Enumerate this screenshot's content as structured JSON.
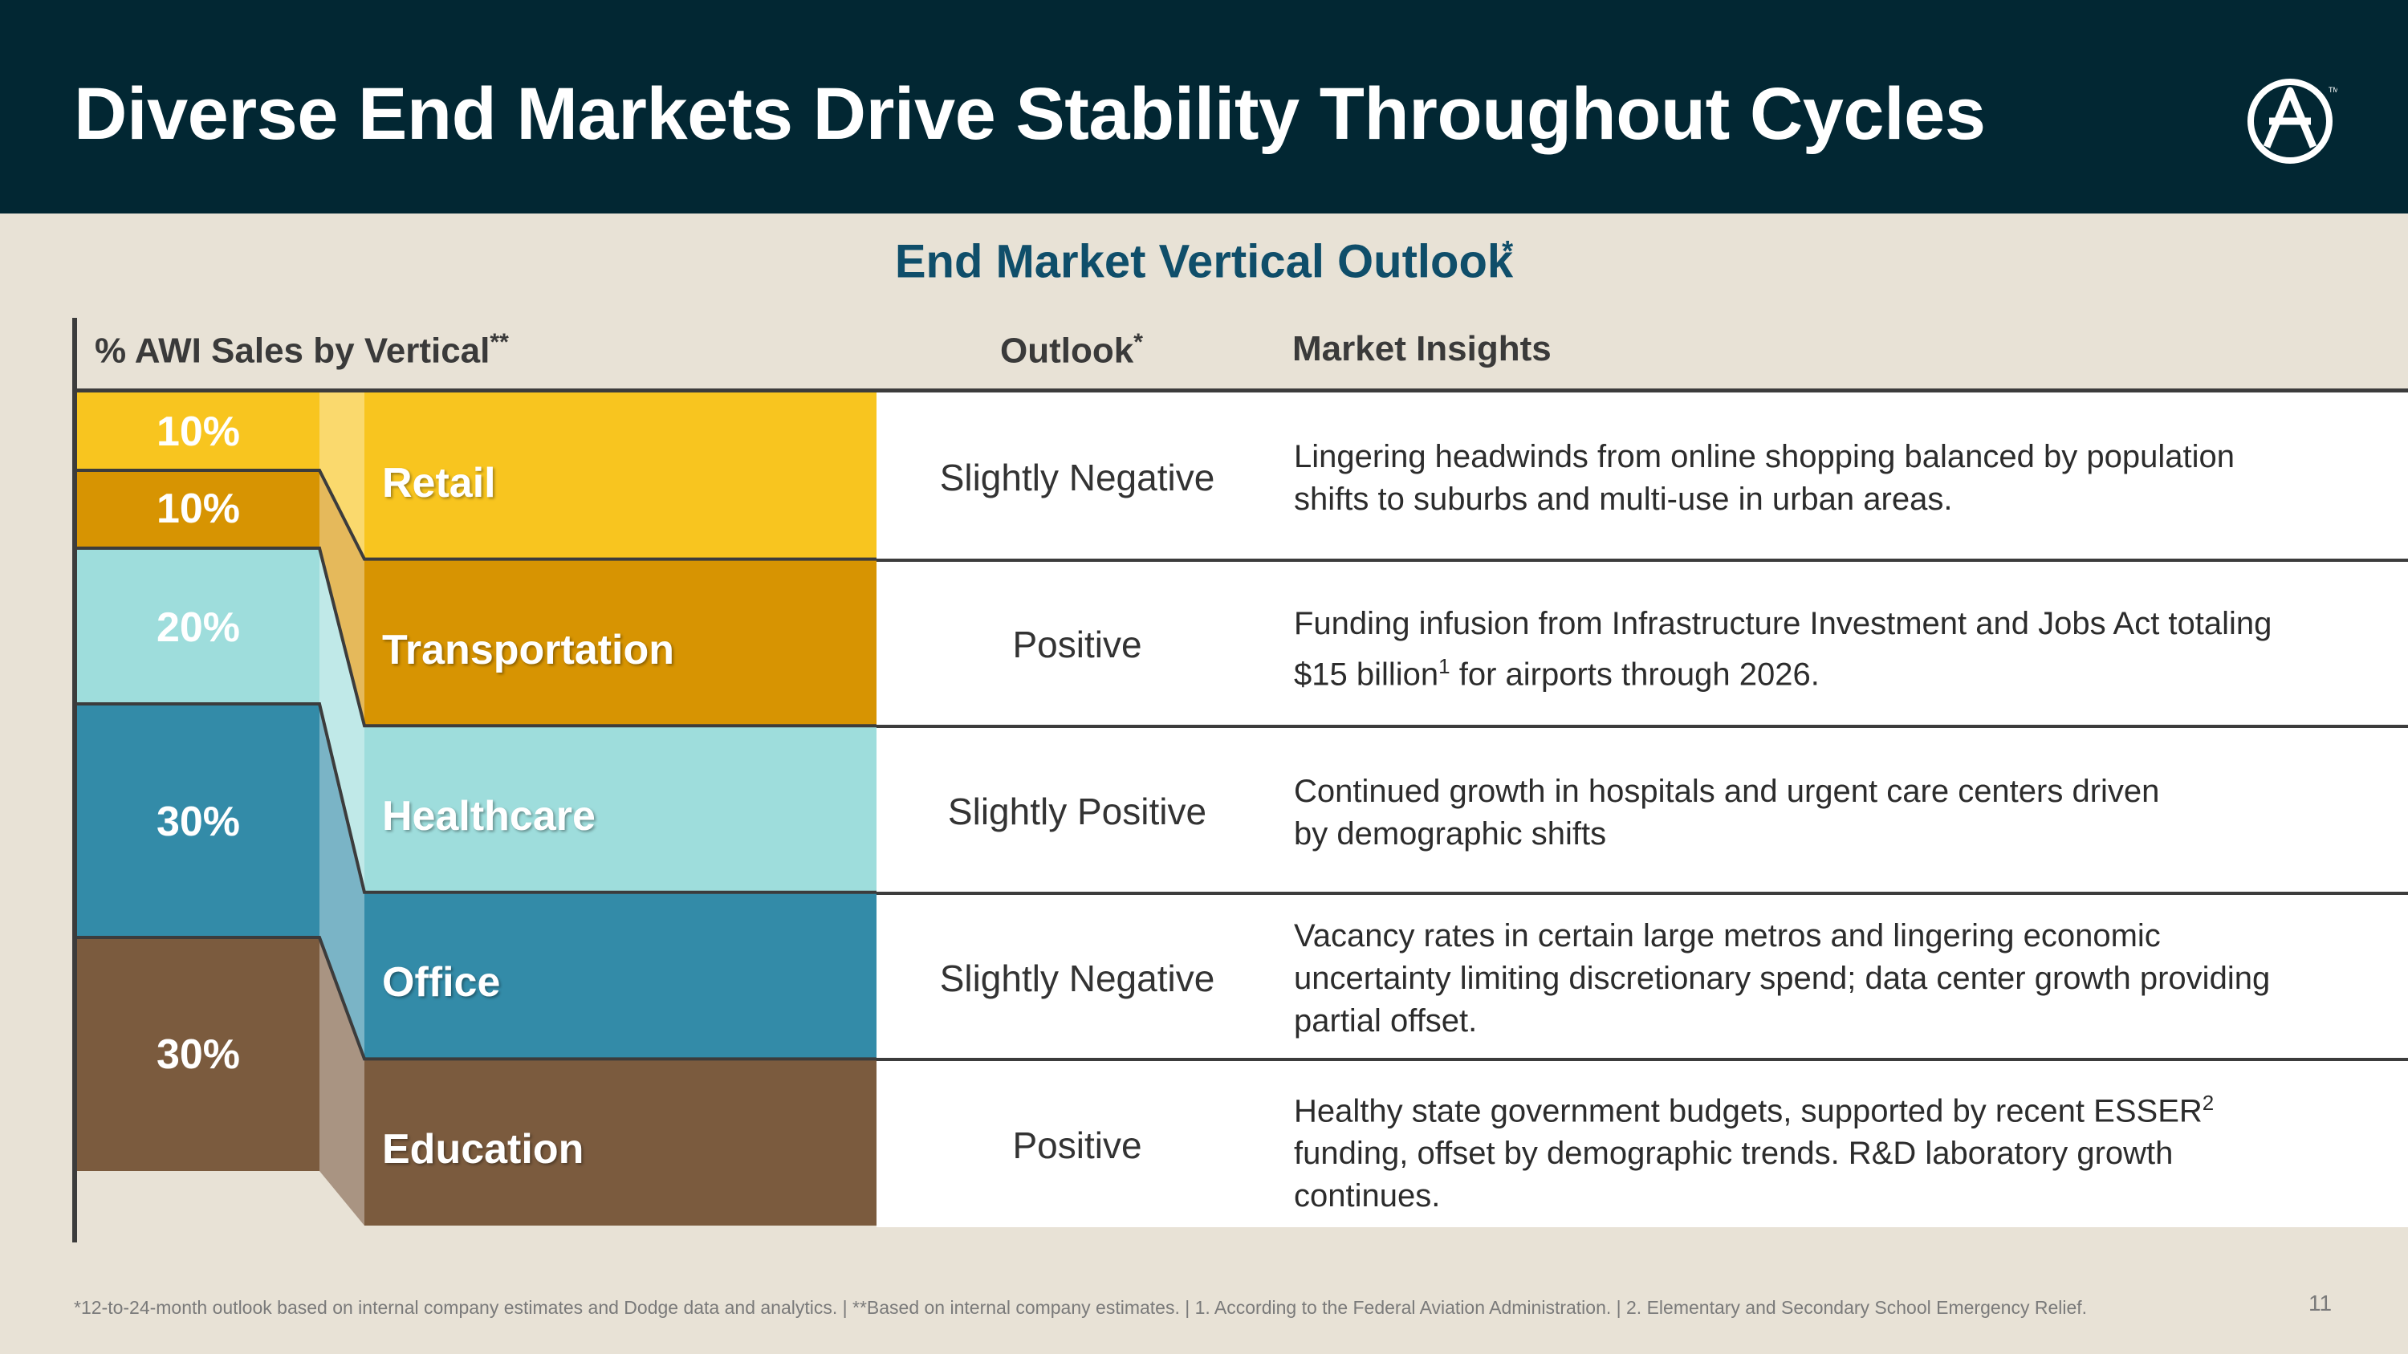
{
  "header": {
    "title": "Diverse End Markets Drive Stability Throughout Cycles",
    "logo_icon": "armstrong-a-logo-icon",
    "background": "#022733"
  },
  "subtitle": {
    "text": "End Market Vertical Outlook",
    "mark": "*"
  },
  "columns": {
    "sales": {
      "label": "% AWI Sales by Vertical",
      "mark": "**"
    },
    "outlook": {
      "label": "Outlook",
      "mark": "*"
    },
    "insights": {
      "label": "Market Insights"
    }
  },
  "percentages": [
    "10%",
    "10%",
    "20%",
    "30%",
    "30%"
  ],
  "verticals": [
    {
      "name": "Retail",
      "share": 10,
      "color": "#F8C51F",
      "outlook": "Slightly Negative",
      "insight_lines": [
        "Lingering headwinds from online shopping balanced by population",
        "shifts to suburbs and multi-use in urban areas."
      ]
    },
    {
      "name": "Transportation",
      "share": 10,
      "color": "#D79402",
      "outlook": "Positive",
      "insight_lines": [
        "Funding infusion from Infrastructure Investment and Jobs Act totaling",
        "$15 billion",
        "1",
        " for airports through 2026."
      ]
    },
    {
      "name": "Healthcare",
      "share": 20,
      "color": "#9EDDDC",
      "outlook": "Slightly Positive",
      "insight_lines": [
        "Continued growth in hospitals and urgent care centers driven",
        "by demographic shifts"
      ]
    },
    {
      "name": "Office",
      "share": 30,
      "color": "#338BA8",
      "outlook": "Slightly Negative",
      "insight_lines": [
        "Vacancy rates in certain large metros and lingering economic",
        "uncertainty limiting discretionary spend; data center growth providing",
        "partial offset."
      ]
    },
    {
      "name": "Education",
      "share": 30,
      "color": "#7B5B3E",
      "outlook": "Positive",
      "insight_lines": [
        "Healthy state government budgets, supported by recent ESSER",
        "2",
        "funding, offset by demographic trends. R&D laboratory growth",
        "continues."
      ]
    }
  ],
  "footnote": "*12-to-24-month outlook based on internal company estimates and Dodge data and analytics.   |   **Based on internal company estimates.   |   1. According to the Federal Aviation Administration.   |   2. Elementary and Secondary School Emergency Relief.",
  "page_number": "11"
}
